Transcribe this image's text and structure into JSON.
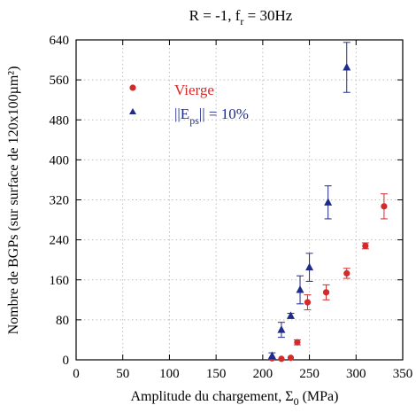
{
  "chart_data": {
    "type": "scatter",
    "title_parts": [
      "R = -1, f",
      "r",
      " = 30Hz"
    ],
    "xlabel_parts": [
      "Amplitude du chargement, Σ",
      "0",
      " (MPa)"
    ],
    "ylabel": "Nombre de BGPs (sur surface de 120x100µm²)",
    "xlim": [
      0,
      350
    ],
    "ylim": [
      0,
      640
    ],
    "x_ticks": [
      0,
      50,
      100,
      150,
      200,
      250,
      300,
      350
    ],
    "y_ticks": [
      0,
      80,
      160,
      240,
      320,
      400,
      480,
      560,
      640
    ],
    "grid": true,
    "legend_position": "top-left",
    "series": [
      {
        "name": "Vierge",
        "marker": "circle",
        "color": "#d42a2a",
        "x": [
          210,
          220,
          230,
          237,
          248,
          268,
          290,
          310,
          330
        ],
        "y": [
          3,
          2,
          4,
          35,
          115,
          135,
          173,
          228,
          307
        ],
        "err": [
          0,
          0,
          0,
          5,
          15,
          15,
          10,
          6,
          25
        ]
      },
      {
        "name_parts": [
          "||E",
          "ps",
          "|| = 10%"
        ],
        "marker": "triangle",
        "color": "#1f2d8a",
        "x": [
          210,
          220,
          230,
          240,
          250,
          270,
          290
        ],
        "y": [
          8,
          60,
          88,
          140,
          185,
          315,
          585
        ],
        "err": [
          6,
          15,
          5,
          28,
          28,
          33,
          50
        ]
      }
    ]
  }
}
